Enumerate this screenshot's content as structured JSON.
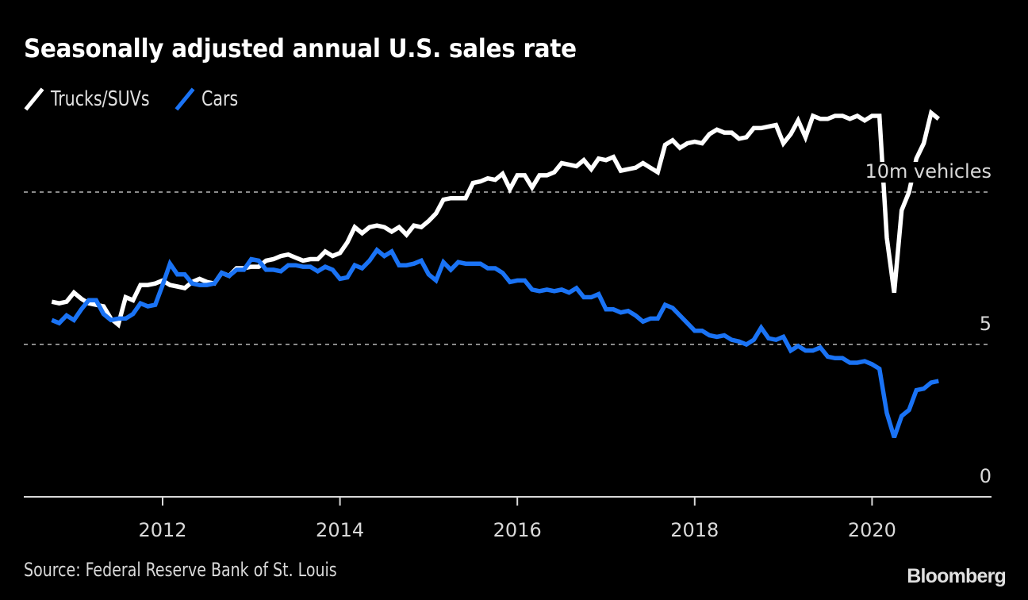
{
  "chart_data": {
    "type": "line",
    "title": "Seasonally adjusted annual U.S. sales rate",
    "xlabel": "",
    "ylabel": "",
    "ylim": [
      0,
      12.8
    ],
    "x_start": "2010-10",
    "x_end": "2020-10",
    "x_frequency": "monthly",
    "x_ticks": [
      "2012",
      "2014",
      "2016",
      "2018",
      "2020"
    ],
    "y_ticks": [
      {
        "value": 0,
        "label": "0"
      },
      {
        "value": 5,
        "label": "5"
      },
      {
        "value": 10,
        "label": "10m vehicles"
      }
    ],
    "grid": "horizontal-dotted",
    "legend_position": "top-left",
    "series": [
      {
        "name": "Trucks/SUVs",
        "color": "#ffffff",
        "values": [
          6.4,
          6.35,
          6.4,
          6.7,
          6.5,
          6.35,
          6.3,
          6.25,
          5.85,
          5.65,
          6.55,
          6.45,
          6.95,
          6.95,
          7.0,
          7.1,
          6.95,
          6.9,
          6.85,
          7.05,
          7.15,
          7.05,
          7.0,
          7.35,
          7.25,
          7.5,
          7.5,
          7.55,
          7.55,
          7.75,
          7.8,
          7.9,
          7.95,
          7.85,
          7.75,
          7.8,
          7.8,
          8.05,
          7.9,
          8.0,
          8.35,
          8.85,
          8.65,
          8.85,
          8.9,
          8.85,
          8.7,
          8.85,
          8.6,
          8.9,
          8.85,
          9.05,
          9.3,
          9.75,
          9.8,
          9.8,
          9.8,
          10.3,
          10.35,
          10.45,
          10.4,
          10.6,
          10.1,
          10.55,
          10.55,
          10.15,
          10.55,
          10.55,
          10.65,
          10.95,
          10.9,
          10.85,
          11.05,
          10.75,
          11.1,
          11.05,
          11.15,
          10.7,
          10.75,
          10.8,
          10.95,
          10.8,
          10.65,
          11.55,
          11.7,
          11.45,
          11.6,
          11.65,
          11.6,
          11.9,
          12.05,
          11.95,
          11.95,
          11.75,
          11.8,
          12.1,
          12.1,
          12.15,
          12.2,
          11.6,
          11.9,
          12.35,
          11.8,
          12.5,
          12.4,
          12.4,
          12.5,
          12.5,
          12.4,
          12.5,
          12.35,
          12.5,
          12.5,
          8.5,
          6.7,
          9.4,
          10.0,
          11.1,
          11.6,
          12.6,
          12.4
        ]
      },
      {
        "name": "Cars",
        "color": "#1a73f5",
        "values": [
          5.8,
          5.7,
          5.95,
          5.8,
          6.15,
          6.45,
          6.45,
          6.0,
          5.8,
          5.85,
          5.85,
          6.0,
          6.35,
          6.25,
          6.3,
          6.95,
          7.65,
          7.3,
          7.3,
          7.0,
          6.95,
          6.95,
          7.0,
          7.35,
          7.25,
          7.45,
          7.45,
          7.8,
          7.75,
          7.45,
          7.45,
          7.4,
          7.6,
          7.6,
          7.55,
          7.55,
          7.4,
          7.55,
          7.45,
          7.15,
          7.2,
          7.6,
          7.5,
          7.75,
          8.1,
          7.9,
          8.05,
          7.6,
          7.6,
          7.65,
          7.75,
          7.3,
          7.1,
          7.7,
          7.45,
          7.7,
          7.65,
          7.65,
          7.65,
          7.5,
          7.5,
          7.35,
          7.05,
          7.1,
          7.1,
          6.8,
          6.75,
          6.8,
          6.75,
          6.8,
          6.7,
          6.85,
          6.55,
          6.55,
          6.65,
          6.15,
          6.15,
          6.05,
          6.1,
          5.95,
          5.75,
          5.85,
          5.85,
          6.3,
          6.2,
          5.95,
          5.7,
          5.45,
          5.45,
          5.3,
          5.25,
          5.3,
          5.15,
          5.1,
          5.0,
          5.15,
          5.55,
          5.2,
          5.15,
          5.25,
          4.8,
          4.95,
          4.8,
          4.8,
          4.9,
          4.6,
          4.55,
          4.55,
          4.4,
          4.4,
          4.45,
          4.35,
          4.2,
          2.75,
          1.95,
          2.65,
          2.85,
          3.5,
          3.55,
          3.75,
          3.8
        ]
      }
    ],
    "source": "Source: Federal Reserve Bank of St. Louis",
    "brand": "Bloomberg"
  }
}
